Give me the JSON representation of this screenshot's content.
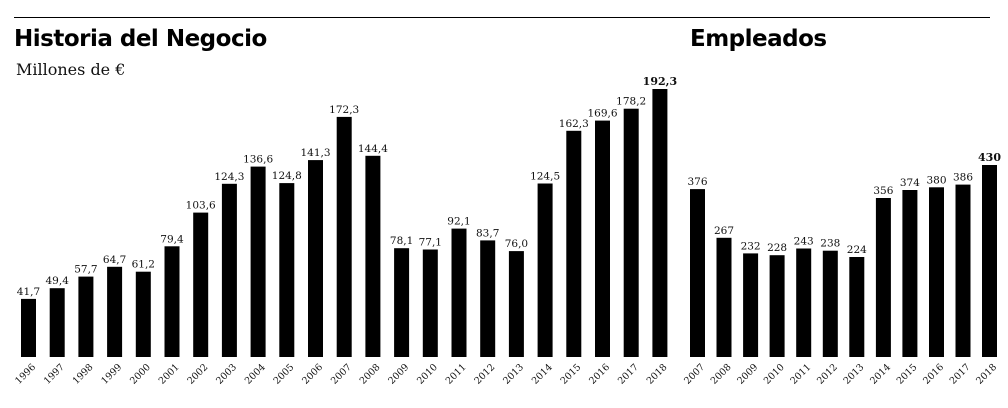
{
  "chart_data": [
    {
      "type": "bar",
      "title": "Historia del Negocio",
      "subtitle": "Millones de €",
      "categories": [
        "1996",
        "1997",
        "1998",
        "1999",
        "2000",
        "2001",
        "2002",
        "2003",
        "2004",
        "2005",
        "2006",
        "2007",
        "2008",
        "2009",
        "2010",
        "2011",
        "2012",
        "2013",
        "2014",
        "2015",
        "2016",
        "2017",
        "2018"
      ],
      "values": [
        41.7,
        49.4,
        57.7,
        64.7,
        61.2,
        79.4,
        103.6,
        124.3,
        136.6,
        124.8,
        141.3,
        172.3,
        144.4,
        78.1,
        77.1,
        92.1,
        83.7,
        76.0,
        124.5,
        162.3,
        169.6,
        178.2,
        192.3
      ],
      "labels": [
        "41,7",
        "49,4",
        "57,7",
        "64,7",
        "61,2",
        "79,4",
        "103,6",
        "124,3",
        "136,6",
        "124,8",
        "141,3",
        "172,3",
        "144,4",
        "78,1",
        "77,1",
        "92,1",
        "83,7",
        "76,0",
        "124,5",
        "162,3",
        "169,6",
        "178,2",
        "192,3"
      ],
      "highlight_last": true,
      "bar_color": "#000000"
    },
    {
      "type": "bar",
      "title": "Empleados",
      "categories": [
        "2007",
        "2008",
        "2009",
        "2010",
        "2011",
        "2012",
        "2013",
        "2014",
        "2015",
        "2016",
        "2017",
        "2018"
      ],
      "values": [
        376,
        267,
        232,
        228,
        243,
        238,
        224,
        356,
        374,
        380,
        386,
        430
      ],
      "labels": [
        "376",
        "267",
        "232",
        "228",
        "243",
        "238",
        "224",
        "356",
        "374",
        "380",
        "386",
        "430"
      ],
      "highlight_last": true,
      "bar_color": "#000000"
    }
  ]
}
